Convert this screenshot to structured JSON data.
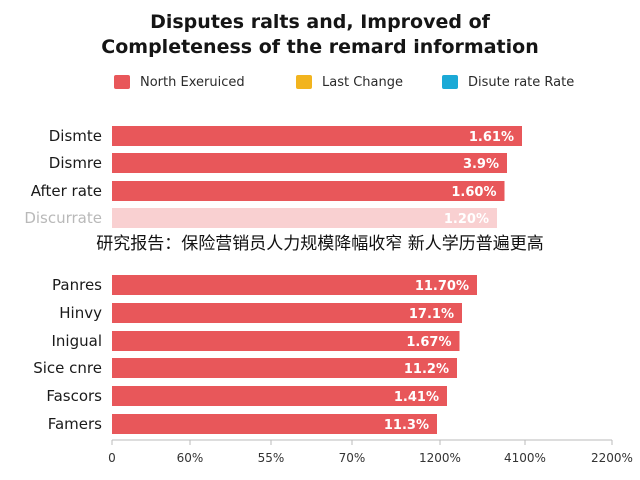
{
  "chart_data": {
    "type": "bar",
    "orientation": "horizontal",
    "title_lines": [
      "Disputes ralts and, Improved of",
      "Completeness of the remard information"
    ],
    "legend": [
      {
        "label": "North Exeruiced",
        "color": "#e8575a"
      },
      {
        "label": "Last Change",
        "color": "#f2b41e"
      },
      {
        "label": "Disute rate Rate",
        "color": "#1ba9d6"
      }
    ],
    "categories": [
      "Dismte",
      "Dismre",
      "After rate",
      "Discurrate",
      "Panres",
      "Hinvy",
      "Inigual",
      "Sice cnre",
      "Fascors",
      "Famers"
    ],
    "values": [
      82,
      79,
      78.5,
      77,
      73,
      70,
      69.5,
      69,
      67,
      65
    ],
    "value_labels": [
      "1.61%",
      "3.9%",
      "1.60%",
      "1.20%",
      "11.70%",
      "17.1%",
      "1.67%",
      "11.2%",
      "1.41%",
      "11.3%"
    ],
    "x_ticks": [
      "0",
      "60%",
      "55%",
      "70%",
      "1200%",
      "4100%",
      "2200%"
    ],
    "xlim": [
      0,
      100
    ],
    "bar_color": "#e8575a",
    "faded_category_index": 3,
    "grid": false,
    "legend_position": "top"
  },
  "overlay_caption": "研究报告：保险营销员人力规模降幅收窄 新人学历普遍更高"
}
